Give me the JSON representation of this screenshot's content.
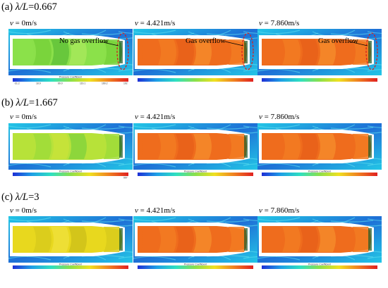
{
  "rows": [
    {
      "label_prefix": "(a) ",
      "label_var": "λ/L",
      "label_value": "=0.667",
      "panels": [
        {
          "v_var": "v",
          "v_text": " = 0m/s",
          "scheme": "green",
          "annotation": "No gas overflow",
          "legend_title": "Pressure Coefficient",
          "ticks": [
            "-31.2",
            "18.9",
            "69.0",
            "119.1",
            "169.2",
            "192"
          ]
        },
        {
          "v_var": "v",
          "v_text": " = 4.421m/s",
          "scheme": "orange",
          "annotation": "Gas overflow",
          "legend_title": "",
          "ticks": [
            "",
            "",
            "",
            "",
            "",
            ""
          ]
        },
        {
          "v_var": "v",
          "v_text": " = 7.860m/s",
          "scheme": "orange",
          "annotation": "Gas overflow",
          "legend_title": "",
          "ticks": [
            "",
            "",
            "",
            "",
            "",
            ""
          ]
        }
      ]
    },
    {
      "label_prefix": "(b) ",
      "label_var": "λ/L",
      "label_value": "=1.667",
      "panels": [
        {
          "v_var": "v",
          "v_text": " = 0m/s",
          "scheme": "green-yellow",
          "annotation": "",
          "legend_title": "Pressure Coefficient",
          "ticks": [
            "",
            "",
            "",
            "",
            "",
            "997"
          ]
        },
        {
          "v_var": "v",
          "v_text": " = 4.421m/s",
          "scheme": "orange",
          "annotation": "",
          "legend_title": "Pressure Coefficient",
          "ticks": [
            "",
            "",
            "",
            "",
            "",
            ""
          ]
        },
        {
          "v_var": "v",
          "v_text": " = 7.860m/s",
          "scheme": "orange",
          "annotation": "",
          "legend_title": "Pressure Coefficient",
          "ticks": [
            "",
            "",
            "",
            "",
            "",
            ""
          ]
        }
      ]
    },
    {
      "label_prefix": "(c) ",
      "label_var": "λ/L",
      "label_value": "=3",
      "panels": [
        {
          "v_var": "v",
          "v_text": " = 0m/s",
          "scheme": "yellow",
          "annotation": "",
          "legend_title": "Pressure Coefficient",
          "ticks": [
            "",
            "",
            "",
            "",
            "",
            ""
          ]
        },
        {
          "v_var": "v",
          "v_text": " = 4.421m/s",
          "scheme": "orange",
          "annotation": "",
          "legend_title": "Pressure Coefficient",
          "ticks": [
            "",
            "",
            "",
            "",
            "",
            ""
          ]
        },
        {
          "v_var": "v",
          "v_text": " = 7.860m/s",
          "scheme": "orange",
          "annotation": "",
          "legend_title": "Pressure Coefficient",
          "ticks": [
            "",
            "",
            "",
            "",
            "",
            ""
          ]
        }
      ]
    }
  ],
  "colors": {
    "outer_blue": "#1e6fd6",
    "outer_cyan": "#23c6e6",
    "green_fill": "#7fd63a",
    "yellow_fill": "#e3d21c",
    "orange_fill": "#ee6a1c",
    "annotation_ellipse": "#d42020"
  }
}
